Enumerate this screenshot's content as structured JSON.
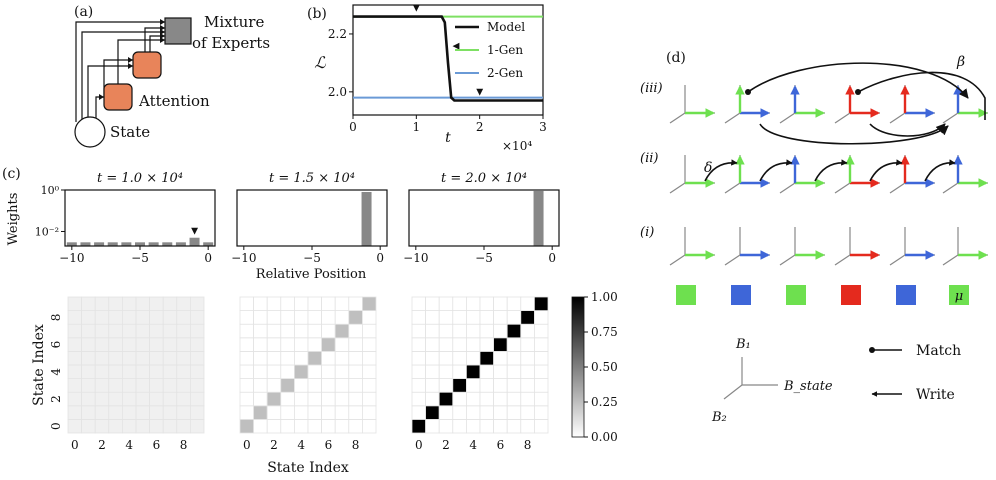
{
  "panel_labels": {
    "a": "(a)",
    "b": "(b)",
    "c": "(c)",
    "d": "(d)"
  },
  "diagram_a": {
    "moe_label_line1": "Mixture",
    "moe_label_line2": "of Experts",
    "attention_label": "Attention",
    "state_label": "State",
    "colors": {
      "attention": "#e8845a",
      "moe": "#888888"
    }
  },
  "chart_data": [
    {
      "id": "loss",
      "type": "line",
      "title": "",
      "xlabel": "t",
      "ylabel": "ℒ",
      "x_exponent_label": "×10⁴",
      "xlim": [
        0,
        3
      ],
      "ylim": [
        1.92,
        2.3
      ],
      "xticks": [
        "0",
        "1",
        "2",
        "3"
      ],
      "yticks": [
        "2.0",
        "2.2"
      ],
      "series": [
        {
          "name": "Model",
          "color": "#111111",
          "x": [
            0,
            0.5,
            1.0,
            1.4,
            1.45,
            1.5,
            1.55,
            1.6,
            2.0,
            2.5,
            3.0
          ],
          "y": [
            2.26,
            2.26,
            2.26,
            2.26,
            2.24,
            2.1,
            1.98,
            1.97,
            1.97,
            1.97,
            1.97
          ]
        },
        {
          "name": "1-Gen",
          "color": "#7ee063",
          "x": [
            0,
            3
          ],
          "y": [
            2.26,
            2.26
          ]
        },
        {
          "name": "2-Gen",
          "color": "#6a9ad6",
          "x": [
            0,
            3
          ],
          "y": [
            1.98,
            1.98
          ]
        }
      ],
      "markers": [
        {
          "symbol": "▼",
          "x": 1.0,
          "y": 2.26
        },
        {
          "symbol": "◀",
          "x": 1.5,
          "y": 2.15
        },
        {
          "symbol": "▼",
          "x": 2.0,
          "y": 1.97
        }
      ]
    },
    {
      "id": "weights",
      "type": "bar",
      "ylabel": "Weights",
      "xlabel": "Relative Position",
      "yscale": "log",
      "yticks": [
        "10⁰",
        "10⁻²"
      ],
      "xticks": [
        "−10",
        "−5",
        "0"
      ],
      "xlim": [
        -10.5,
        0.5
      ],
      "panels": [
        {
          "title": "t = 1.0 × 10⁴",
          "positions": [
            -10,
            -9,
            -8,
            -7,
            -6,
            -5,
            -4,
            -3,
            -2,
            -1,
            0
          ],
          "values": [
            0.003,
            0.003,
            0.003,
            0.003,
            0.003,
            0.003,
            0.003,
            0.003,
            0.003,
            0.005,
            0.003
          ],
          "marker_at": -1
        },
        {
          "title": "t = 1.5 × 10⁴",
          "positions": [
            -1
          ],
          "values": [
            0.8
          ]
        },
        {
          "title": "t = 2.0 × 10⁴",
          "positions": [
            -1
          ],
          "values": [
            0.9
          ]
        }
      ]
    },
    {
      "id": "state_matrices",
      "type": "heatmap",
      "xlabel": "State Index",
      "ylabel": "State Index",
      "xticks": [
        "0",
        "2",
        "4",
        "6",
        "8"
      ],
      "yticks": [
        "0",
        "2",
        "4",
        "6",
        "8"
      ],
      "colorbar_ticks": [
        "0.00",
        "0.25",
        "0.50",
        "0.75",
        "1.00"
      ],
      "vmin": 0,
      "vmax": 1,
      "matrices": [
        {
          "offdiag": 0.06,
          "diag": 0.06
        },
        {
          "offdiag": 0.0,
          "diag": 0.25
        },
        {
          "offdiag": 0.0,
          "diag": 1.0
        }
      ]
    }
  ],
  "diagram_d": {
    "row_labels": [
      "(iii)",
      "(ii)",
      "(i)"
    ],
    "beta_label": "β",
    "delta_label": "δ",
    "mu_label": "μ",
    "colors": {
      "green": "#6ee04f",
      "blue": "#3e66d8",
      "red": "#e42a1e",
      "axis": "#888888"
    },
    "token_colors": [
      "green",
      "blue",
      "green",
      "red",
      "blue",
      "green"
    ],
    "rows": {
      "i": [
        [
          null,
          "green"
        ],
        [
          null,
          "blue"
        ],
        [
          null,
          "green"
        ],
        [
          null,
          "red"
        ],
        [
          null,
          "blue"
        ],
        [
          null,
          "green"
        ]
      ],
      "ii": [
        [
          null,
          "green"
        ],
        [
          "green",
          "blue"
        ],
        [
          "blue",
          "green"
        ],
        [
          "green",
          "red"
        ],
        [
          "red",
          "blue"
        ],
        [
          "blue",
          "green"
        ]
      ],
      "iii": [
        [
          null,
          "green"
        ],
        [
          "green",
          "blue"
        ],
        [
          "blue",
          "green"
        ],
        [
          "red",
          "red"
        ],
        [
          "red",
          "blue"
        ],
        [
          "blue",
          "green"
        ]
      ]
    },
    "legend": {
      "B1": "B₁",
      "B2": "B₂",
      "Bstate": "B_state",
      "match": "Match",
      "write": "Write"
    }
  }
}
